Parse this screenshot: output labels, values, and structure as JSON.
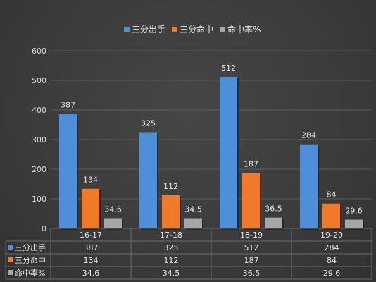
{
  "chart_data": {
    "type": "bar",
    "categories": [
      "16-17",
      "17-18",
      "18-19",
      "19-20"
    ],
    "series": [
      {
        "name": "三分出手",
        "values": [
          387,
          325,
          512,
          284
        ],
        "labels": [
          "387",
          "325",
          "512",
          "284"
        ],
        "color": "#4f8fd9"
      },
      {
        "name": "三分命中",
        "values": [
          134,
          112,
          187,
          84
        ],
        "labels": [
          "134",
          "112",
          "187",
          "84"
        ],
        "color": "#f07a2a"
      },
      {
        "name": "命中率%",
        "values": [
          34.6,
          34.5,
          36.5,
          29.6
        ],
        "labels": [
          "34.6",
          "34.5",
          "36.5",
          "29.6"
        ],
        "color": "#a6a6a6"
      }
    ],
    "ylim": [
      0,
      600
    ],
    "yticks": [
      "0",
      "100",
      "200",
      "300",
      "400",
      "500",
      "600"
    ],
    "legend_position": "top",
    "grid": true,
    "data_table": true
  }
}
